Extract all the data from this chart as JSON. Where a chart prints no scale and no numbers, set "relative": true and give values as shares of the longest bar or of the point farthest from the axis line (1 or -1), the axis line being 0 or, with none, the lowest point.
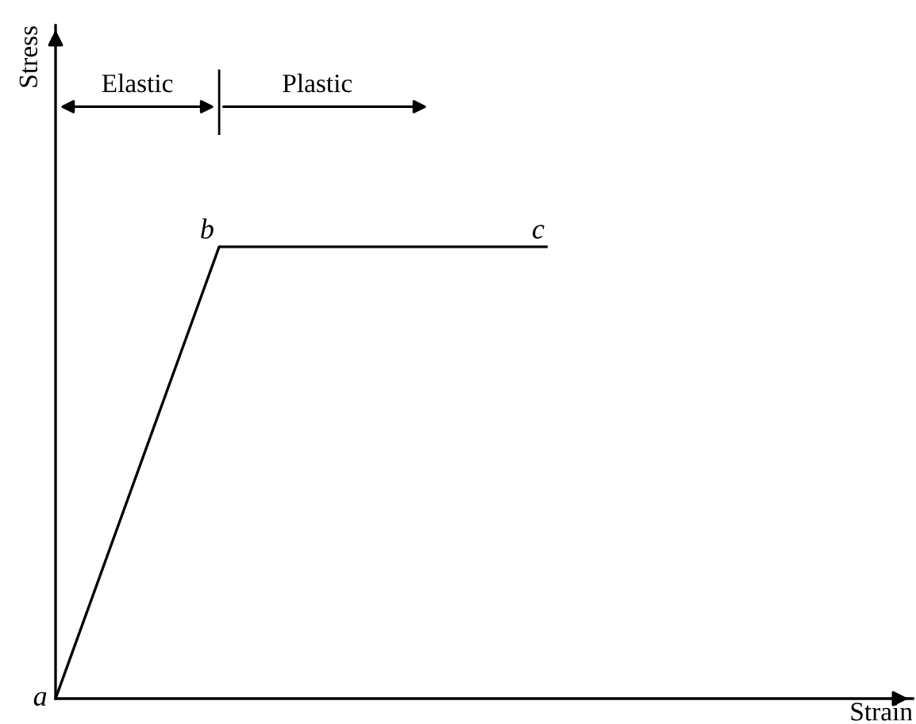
{
  "chart_data": {
    "type": "line",
    "categories": [
      null,
      null,
      null,
      null
    ],
    "series": [
      {
        "color": "#000000",
        "values": [
          0,
          1,
          1,
          1
        ]
      }
    ],
    "relative": true,
    "annotations": [
      "a",
      "b",
      "c",
      "Elastic",
      "Plastic",
      "Strain",
      "Stress"
    ],
    "grid": false,
    "legend": false,
    "marker": "none",
    "line_style": "solid"
  }
}
